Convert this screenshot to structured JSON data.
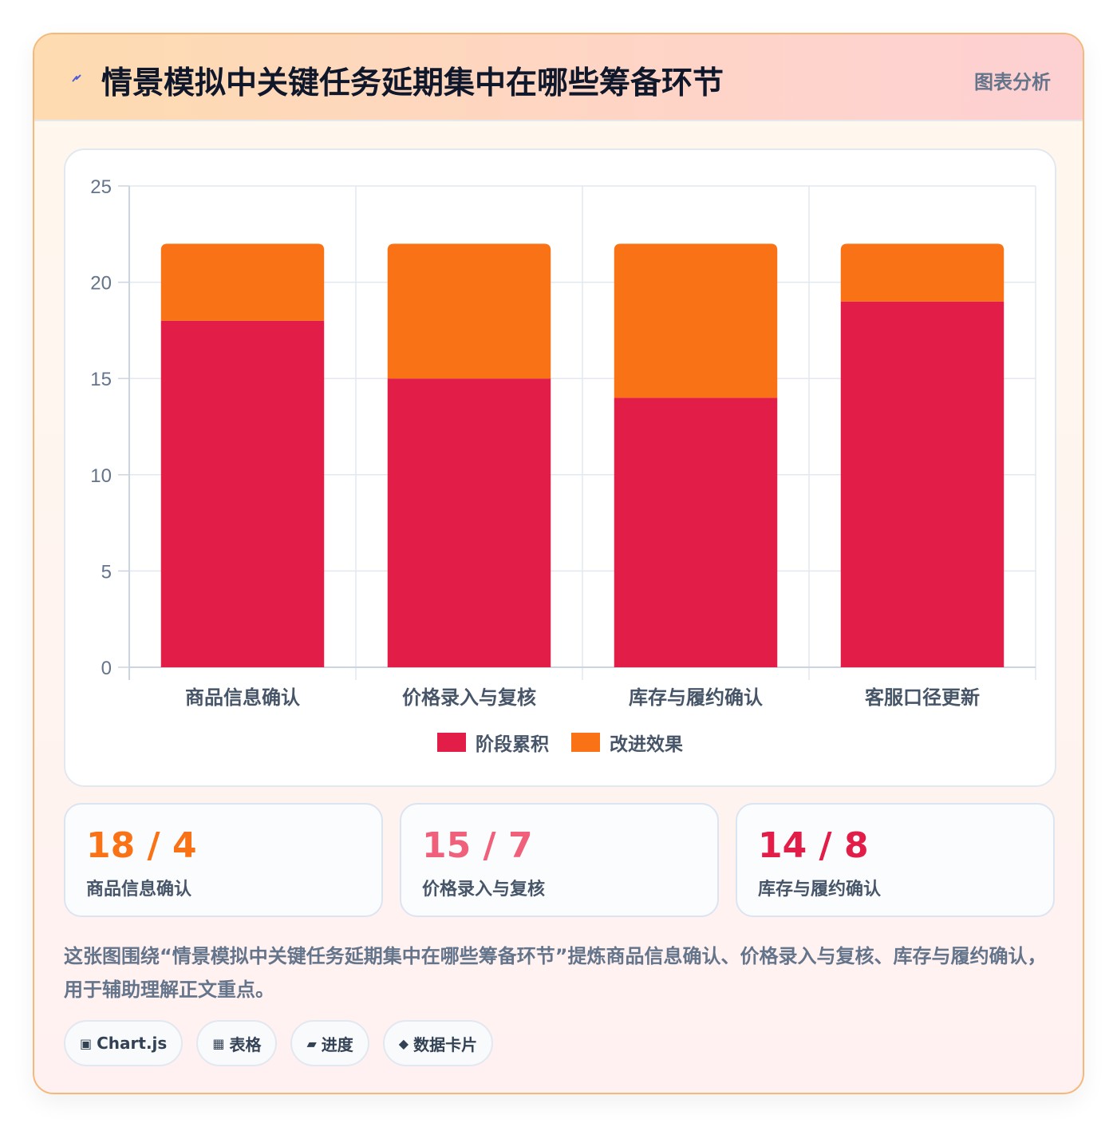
{
  "header": {
    "icon": "lightning-icon",
    "title": "情景模拟中关键任务延期集中在哪些筹备环节",
    "tag": "图表分析"
  },
  "chart_data": {
    "type": "bar",
    "stacked": true,
    "categories": [
      "商品信息确认",
      "价格录入与复核",
      "库存与履约确认",
      "客服口径更新"
    ],
    "series": [
      {
        "name": "阶段累积",
        "values": [
          18,
          15,
          14,
          19
        ],
        "color": "#e11d48"
      },
      {
        "name": "改进效果",
        "values": [
          4,
          7,
          8,
          3
        ],
        "color": "#f97316"
      }
    ],
    "ylim": [
      0,
      25
    ],
    "yticks": [
      0,
      5,
      10,
      15,
      20,
      25
    ],
    "grid": true,
    "legend": "bottom"
  },
  "stats": [
    {
      "value": "18 / 4",
      "label": "商品信息确认",
      "color": "#f97316"
    },
    {
      "value": "15 / 7",
      "label": "价格录入与复核",
      "color": "#f0607a"
    },
    {
      "value": "14 / 8",
      "label": "库存与履约确认",
      "color": "#e11d48"
    }
  ],
  "description": "这张图围绕“情景模拟中关键任务延期集中在哪些筹备环节”提炼商品信息确认、价格录入与复核、库存与履约确认，用于辅助理解正文重点。",
  "tags": [
    {
      "icon": "▣",
      "label": "Chart.js"
    },
    {
      "icon": "▦",
      "label": "表格"
    },
    {
      "icon": "▰",
      "label": "进度"
    },
    {
      "icon": "◆",
      "label": "数据卡片"
    }
  ]
}
